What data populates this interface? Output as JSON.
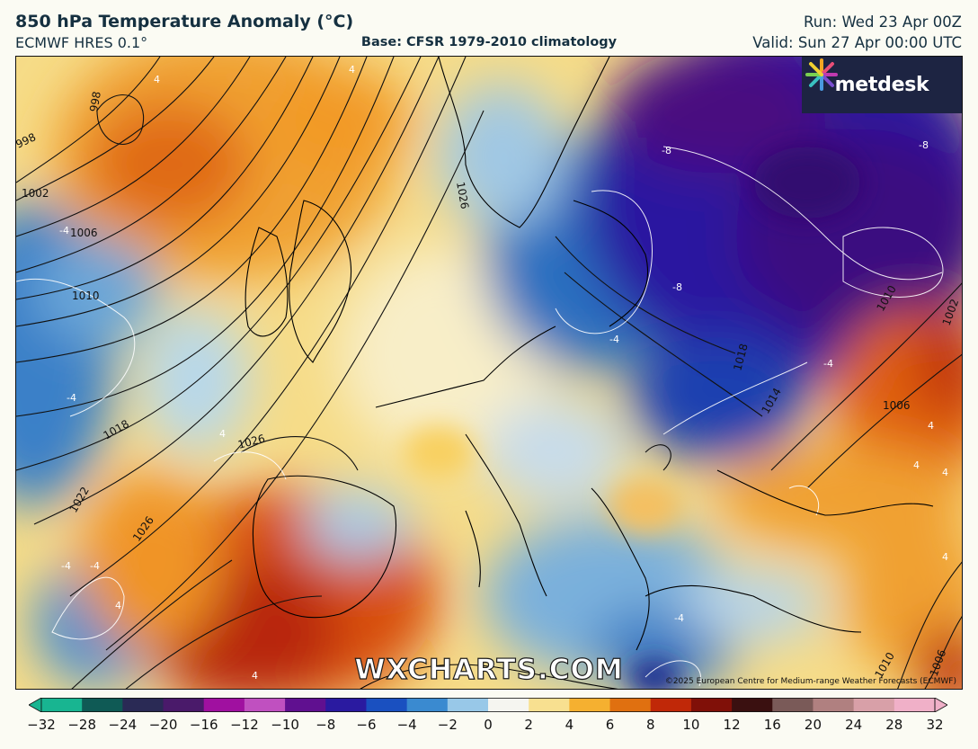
{
  "header": {
    "title": "850 hPa Temperature Anomaly (°C)",
    "model": "ECMWF HRES 0.1°",
    "base": "Base: CFSR 1979-2010 climatology",
    "run": "Run: Wed 23 Apr 00Z",
    "valid": "Valid: Sun 27 Apr 00:00 UTC"
  },
  "logo": {
    "text": "metdesk",
    "icon": "pinwheel-logo-icon"
  },
  "watermark": "WXCHARTS.COM",
  "copyright": "©2025 European Centre for Medium-range Weather Forecasts (ECMWF)",
  "isobar_labels": [
    "998",
    "998",
    "1002",
    "1006",
    "1010",
    "1018",
    "1022",
    "1026",
    "1026",
    "1026",
    "1018",
    "1014",
    "1010",
    "1002",
    "1006",
    "1010",
    "1006"
  ],
  "anomaly_labels": [
    "4",
    "4",
    "-4",
    "-4",
    "4",
    "-4",
    "-8",
    "-8",
    "-8",
    "-4",
    "-4",
    "4",
    "4",
    "4",
    "4",
    "-4",
    "4",
    "4",
    "-4"
  ],
  "colorbar": {
    "ticks": [
      "−32",
      "−28",
      "−24",
      "−20",
      "−16",
      "−12",
      "−10",
      "−8",
      "−6",
      "−4",
      "−2",
      "0",
      "2",
      "4",
      "6",
      "8",
      "10",
      "12",
      "16",
      "20",
      "24",
      "28",
      "32"
    ],
    "colors": [
      "#18b591",
      "#0f5a55",
      "#2a2a55",
      "#4a1a6a",
      "#a010a0",
      "#c050c0",
      "#601090",
      "#2a1aa0",
      "#1a50c0",
      "#3a8ad0",
      "#98c8e8",
      "#f5f5f0",
      "#f8e090",
      "#f5b030",
      "#e07010",
      "#c02808",
      "#801008",
      "#3a1010",
      "#7a5a58",
      "#b08080",
      "#d8a0a8",
      "#f0b0c8"
    ]
  }
}
